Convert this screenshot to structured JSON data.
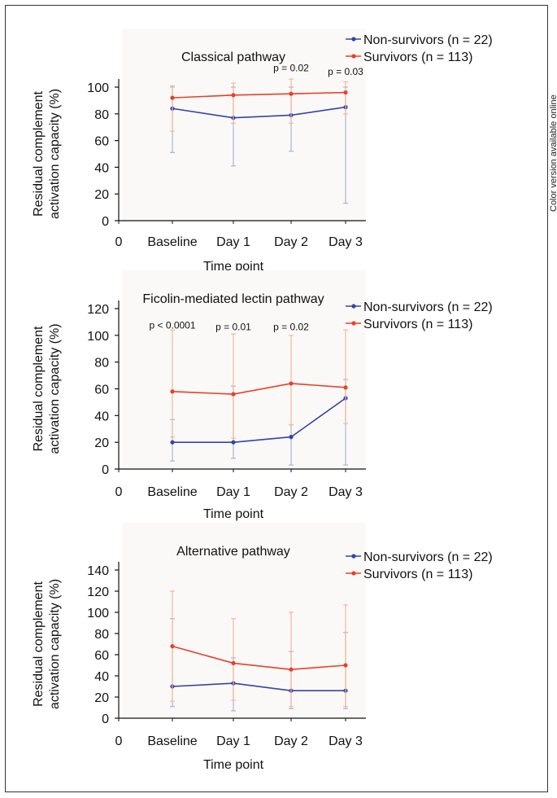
{
  "side_note": "Color version available online",
  "colors": {
    "non_survivors": "#3344a8",
    "survivors": "#e8402a",
    "non_survivors_err": "#aab4dc",
    "survivors_err": "#f4b79a"
  },
  "chart_data": [
    {
      "type": "line",
      "title": "Classical pathway",
      "xlabel": "Time point",
      "ylabel": [
        "Residual complement",
        "activation capacity (%)"
      ],
      "x_ticks": [
        "0",
        "Baseline",
        "Day 1",
        "Day 2",
        "Day 3"
      ],
      "categories": [
        "Baseline",
        "Day 1",
        "Day 2",
        "Day 3"
      ],
      "ylim": [
        0,
        100
      ],
      "y_ticks": [
        0,
        20,
        40,
        60,
        80,
        100
      ],
      "legend": "top-right",
      "series": [
        {
          "name": "Non-survivors (n = 22)",
          "values": [
            84,
            77,
            79,
            85
          ],
          "err_low": [
            51,
            41,
            52,
            13
          ],
          "err_high": [
            100,
            100,
            100,
            100
          ]
        },
        {
          "name": "Survivors (n = 113)",
          "values": [
            92,
            94,
            95,
            96
          ],
          "err_low": [
            67,
            73,
            73,
            80
          ],
          "err_high": [
            101,
            103,
            106,
            104
          ]
        }
      ],
      "annotations": [
        {
          "text": "p = 0.02",
          "x": "Day 2",
          "y": 112
        },
        {
          "text": "p = 0.03",
          "x": "Day 3",
          "y": 109
        }
      ]
    },
    {
      "type": "line",
      "title": "Ficolin-mediated lectin pathway",
      "xlabel": "Time point",
      "ylabel": [
        "Residual complement",
        "activation capacity (%)"
      ],
      "x_ticks": [
        "0",
        "Baseline",
        "Day 1",
        "Day 2",
        "Day 3"
      ],
      "categories": [
        "Baseline",
        "Day 1",
        "Day 2",
        "Day 3"
      ],
      "ylim": [
        0,
        120
      ],
      "y_ticks": [
        0,
        20,
        40,
        60,
        80,
        100,
        120
      ],
      "legend": "top-right",
      "series": [
        {
          "name": "Non-survivors (n = 22)",
          "values": [
            20,
            20,
            24,
            53
          ],
          "err_low": [
            6,
            8,
            3,
            3
          ],
          "err_high": [
            37,
            62,
            33,
            67
          ]
        },
        {
          "name": "Survivors (n = 113)",
          "values": [
            58,
            56,
            64,
            61
          ],
          "err_low": [
            24,
            23,
            33,
            34
          ],
          "err_high": [
            104,
            101,
            100,
            104
          ]
        }
      ],
      "annotations": [
        {
          "text": "p < 0.0001",
          "x": "Baseline",
          "y": 105
        },
        {
          "text": "p = 0.01",
          "x": "Day 1",
          "y": 104
        },
        {
          "text": "p = 0.02",
          "x": "Day 2",
          "y": 104
        }
      ]
    },
    {
      "type": "line",
      "title": "Alternative pathway",
      "xlabel": "Time point",
      "ylabel": [
        "Residual complement",
        "activation capacity (%)"
      ],
      "x_ticks": [
        "0",
        "Baseline",
        "Day 1",
        "Day 2",
        "Day 3"
      ],
      "categories": [
        "Baseline",
        "Day 1",
        "Day 2",
        "Day 3"
      ],
      "ylim": [
        0,
        140
      ],
      "y_ticks": [
        0,
        20,
        40,
        60,
        80,
        100,
        120,
        140
      ],
      "legend": "top-right",
      "series": [
        {
          "name": "Non-survivors (n = 22)",
          "values": [
            30,
            33,
            26,
            26
          ],
          "err_low": [
            11,
            7,
            9,
            9
          ],
          "err_high": [
            94,
            57,
            63,
            81
          ]
        },
        {
          "name": "Survivors (n = 113)",
          "values": [
            68,
            52,
            46,
            50
          ],
          "err_low": [
            16,
            17,
            11,
            11
          ],
          "err_high": [
            120,
            94,
            100,
            107
          ]
        }
      ],
      "annotations": []
    }
  ]
}
